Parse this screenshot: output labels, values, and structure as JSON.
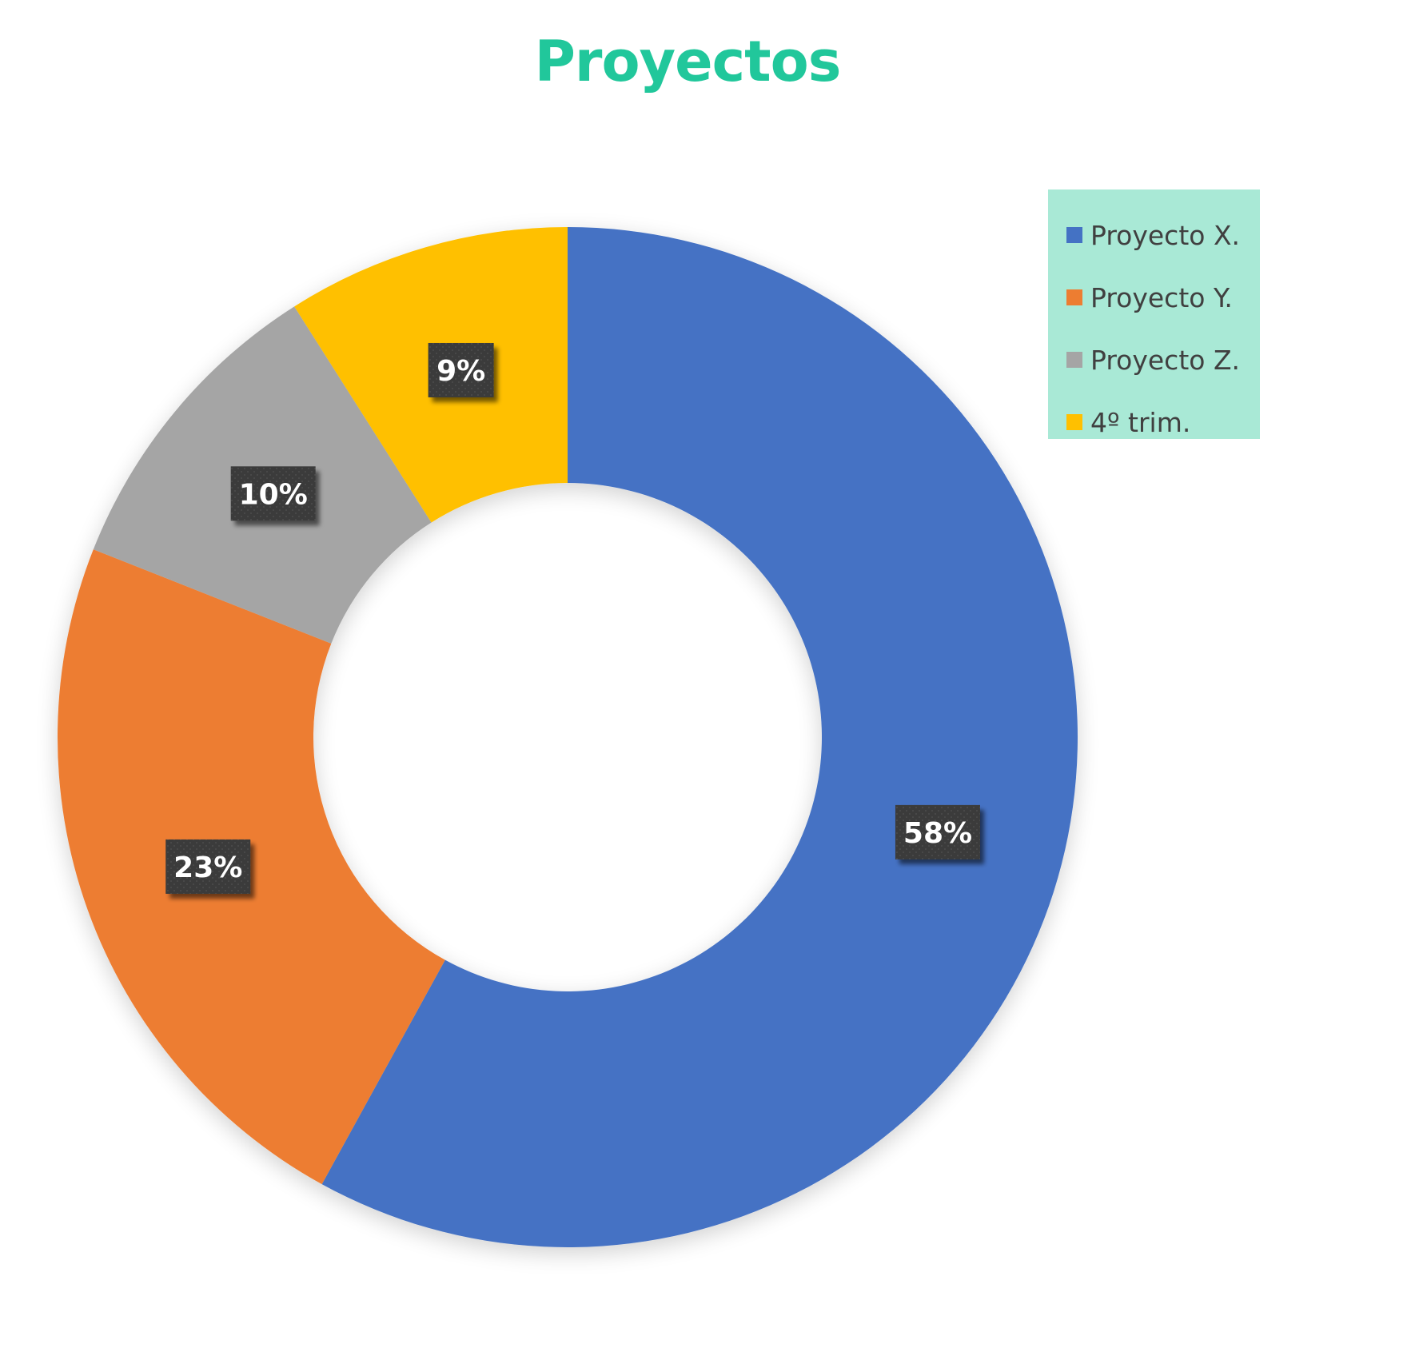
{
  "chart_data": {
    "type": "pie",
    "variant": "donut",
    "title": "Proyectos",
    "categories": [
      "Proyecto X.",
      "Proyecto Y.",
      "Proyecto Z.",
      "4º trim."
    ],
    "values": [
      58,
      23,
      10,
      9
    ],
    "data_labels": [
      "58%",
      "23%",
      "10%",
      "9%"
    ],
    "colors": [
      "#4472C4",
      "#ED7D31",
      "#A5A5A5",
      "#FFC000"
    ],
    "legend": "top-right",
    "start_angle_deg": 0,
    "direction": "clockwise"
  },
  "style": {
    "title_color": "#21C79B",
    "legend_background": "#A9E9D6",
    "label_background": "#3B3B3B",
    "label_text_color": "#FFFFFF"
  }
}
